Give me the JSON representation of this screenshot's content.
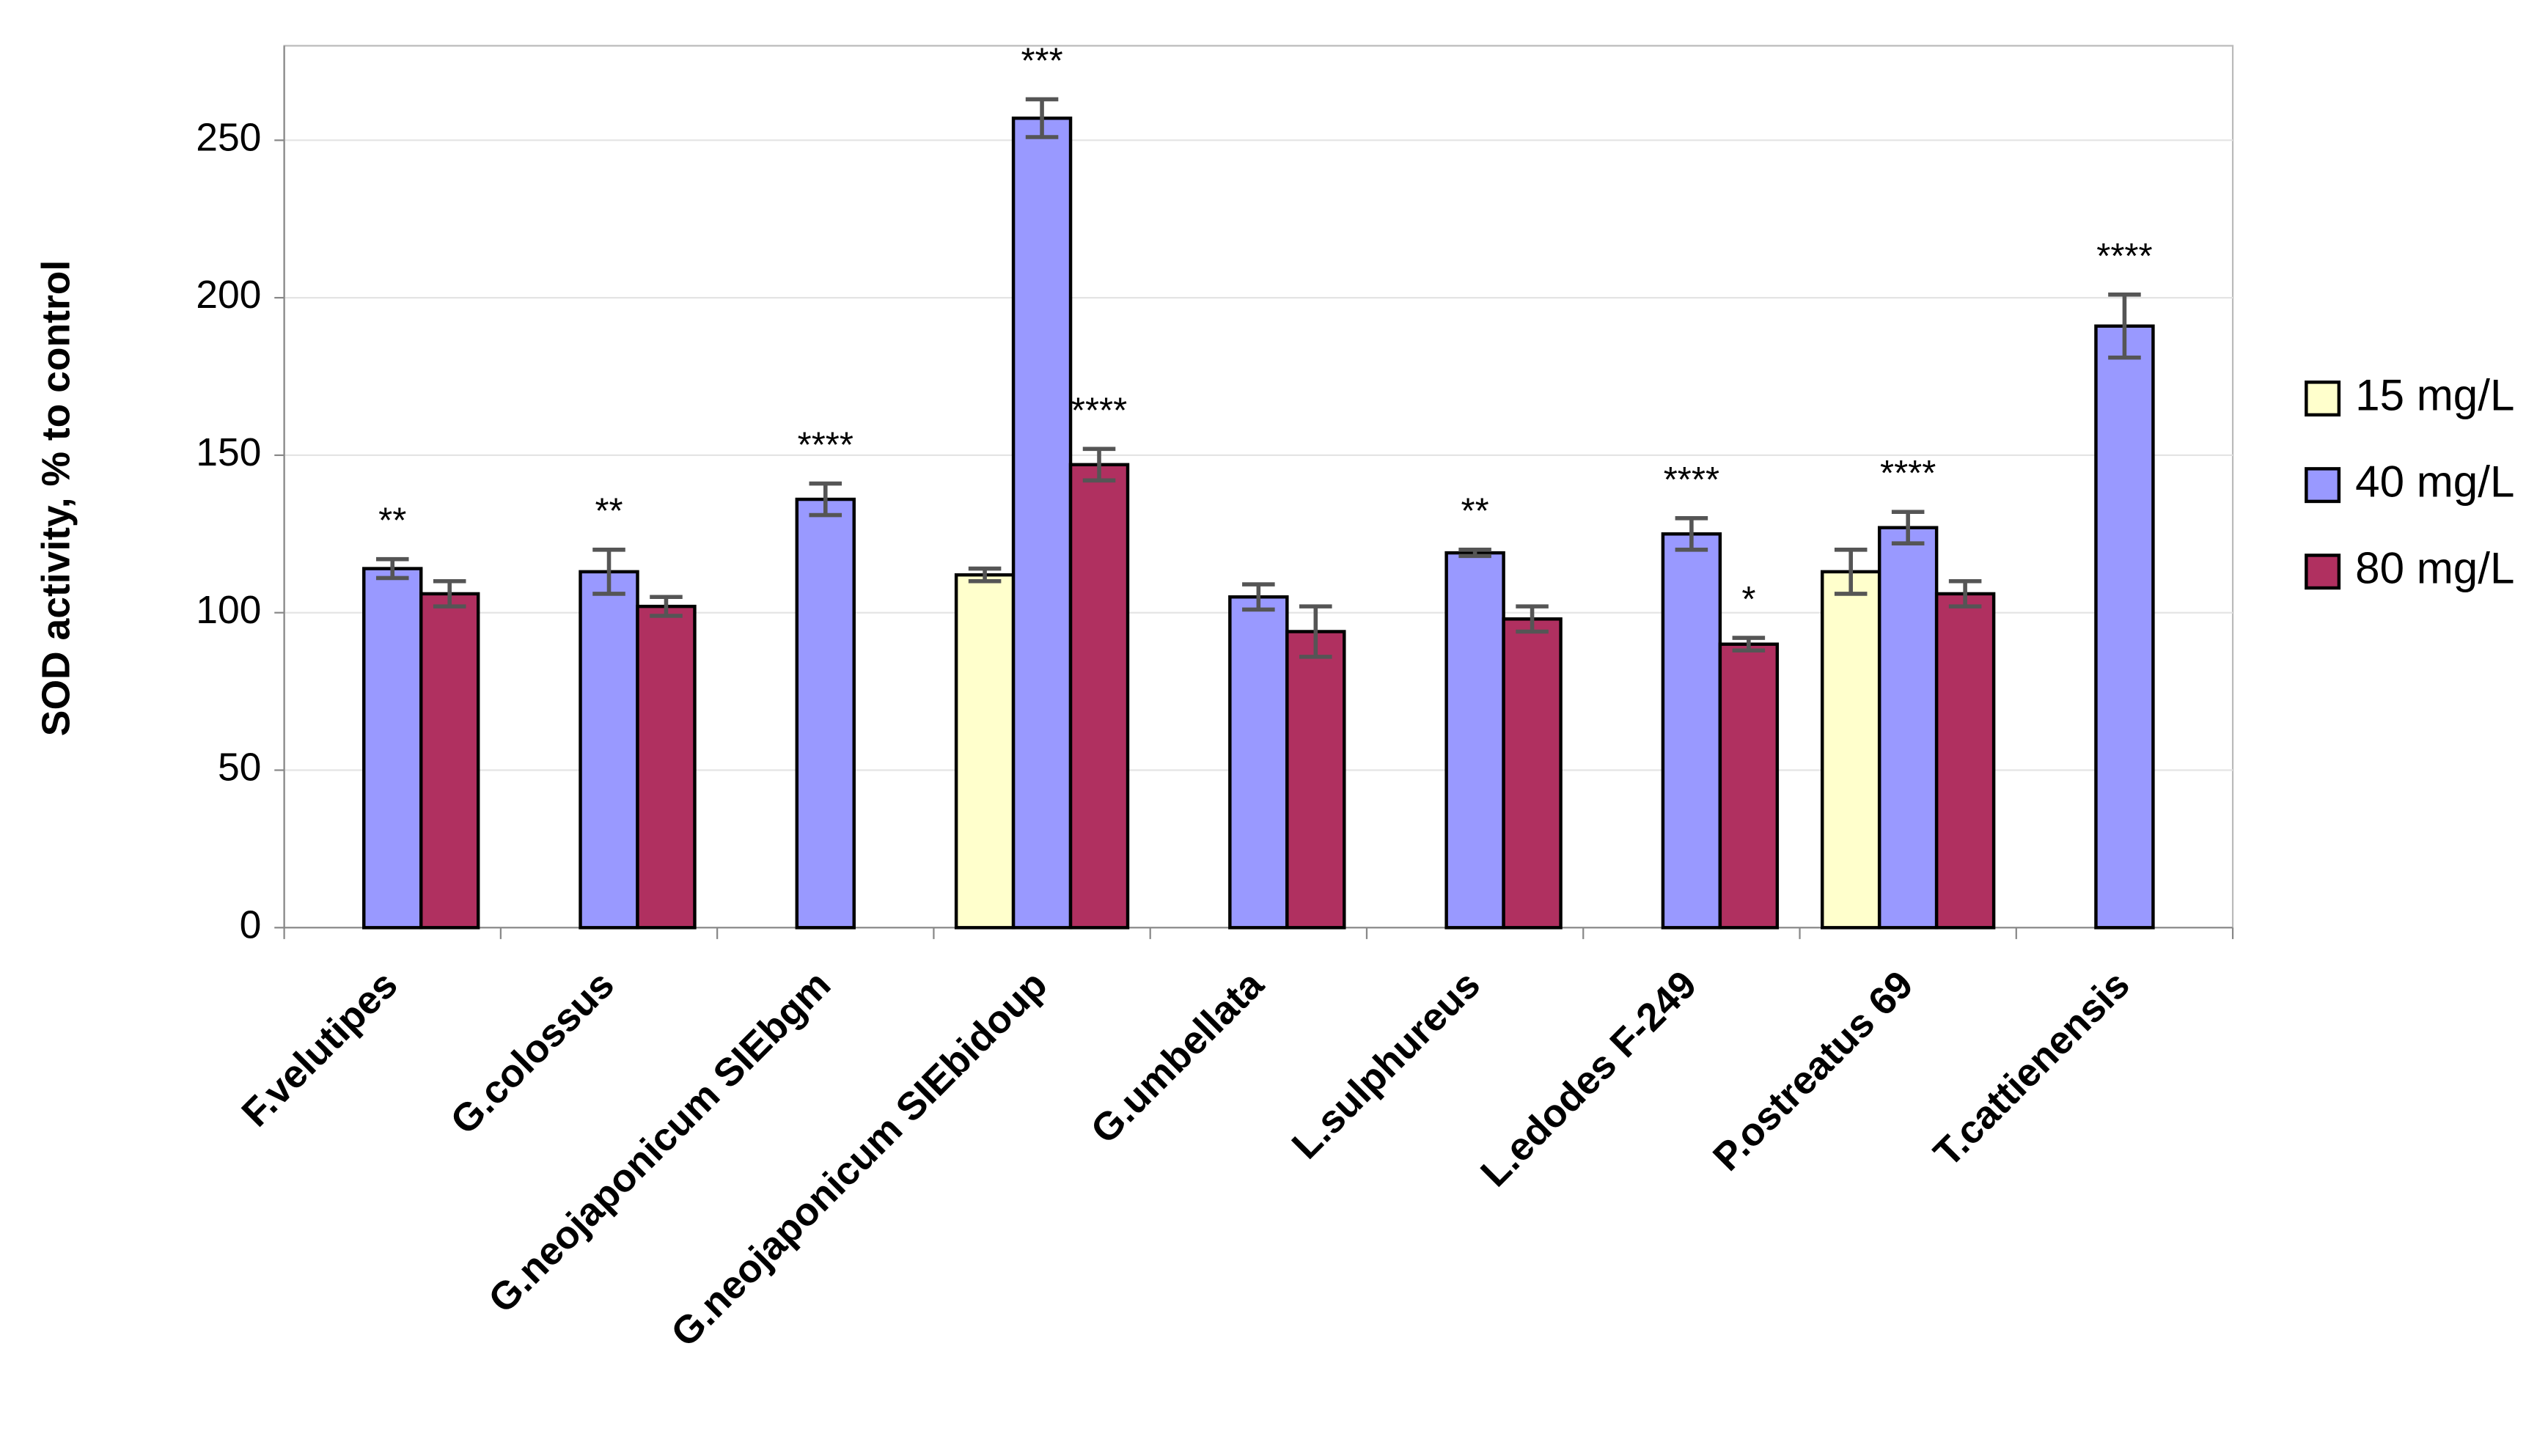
{
  "chart_data": {
    "type": "bar",
    "y_label": "SOD activity, % to control",
    "categories": [
      "F.velutipes",
      "G.colossus",
      "G.neojaponicum SIEbgm",
      "G.neojaponicum SIEbidoup",
      "G.umbellata",
      "L.sulphureus",
      "L.edodes F-249",
      "P.ostreatus 69",
      "T.cattienensis"
    ],
    "series": [
      {
        "name": "15 mg/L",
        "color": "#ffffcc",
        "values": [
          null,
          null,
          null,
          112,
          null,
          null,
          null,
          113,
          null
        ],
        "errors": [
          null,
          null,
          null,
          2,
          null,
          null,
          null,
          7,
          null
        ],
        "labels": [
          null,
          null,
          null,
          null,
          null,
          null,
          null,
          null,
          null
        ]
      },
      {
        "name": "40 mg/L",
        "color": "#9999ff",
        "values": [
          114,
          113,
          136,
          257,
          105,
          119,
          125,
          127,
          191
        ],
        "errors": [
          3,
          7,
          5,
          6,
          4,
          1,
          5,
          5,
          10
        ],
        "labels": [
          "**",
          "**",
          "****",
          "***",
          null,
          "**",
          "****",
          "****",
          "****"
        ]
      },
      {
        "name": "80 mg/L",
        "color": "#b03060",
        "values": [
          106,
          102,
          null,
          147,
          94,
          98,
          90,
          106,
          null
        ],
        "errors": [
          4,
          3,
          null,
          5,
          8,
          4,
          2,
          4,
          null
        ],
        "labels": [
          null,
          null,
          null,
          "****",
          null,
          null,
          "*",
          null,
          null
        ]
      }
    ],
    "ylim": [
      0,
      280
    ],
    "yticks": [
      0,
      50,
      100,
      150,
      200,
      250
    ],
    "grid": true,
    "legend": "right"
  }
}
